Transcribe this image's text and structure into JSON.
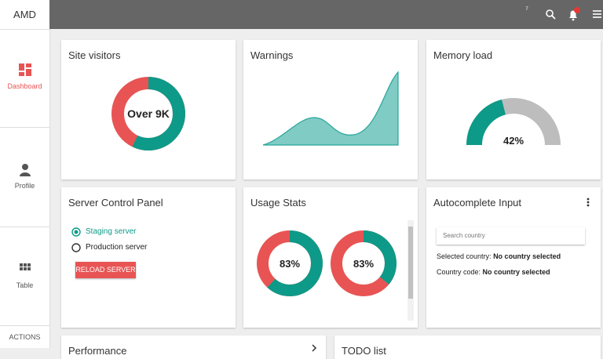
{
  "app": {
    "brand": "AMD"
  },
  "topbar": {
    "notification_count": 7
  },
  "sidebar": {
    "items": [
      {
        "label": "Dashboard"
      },
      {
        "label": "Profile"
      },
      {
        "label": "Table"
      }
    ],
    "footer": "ACTIONS"
  },
  "cards": {
    "site_visitors": {
      "title": "Site visitors",
      "center": "Over 9K"
    },
    "warnings": {
      "title": "Warnings"
    },
    "memory_load": {
      "title": "Memory load",
      "center": "42%"
    },
    "server_control_panel": {
      "title": "Server Control Panel",
      "options": [
        "Staging server",
        "Production server"
      ],
      "button": "RELOAD SERVER"
    },
    "usage_stats": {
      "title": "Usage Stats",
      "gauges": [
        "83%",
        "83%"
      ]
    },
    "autocomplete_input": {
      "title": "Autocomplete Input",
      "placeholder": "Search country",
      "fields": [
        {
          "label": "Selected country:",
          "value": "No country selected"
        },
        {
          "label": "Country code:",
          "value": "No country selected"
        }
      ]
    },
    "performance": {
      "title": "Performance"
    },
    "todo_list": {
      "title": "TODO list"
    }
  }
}
